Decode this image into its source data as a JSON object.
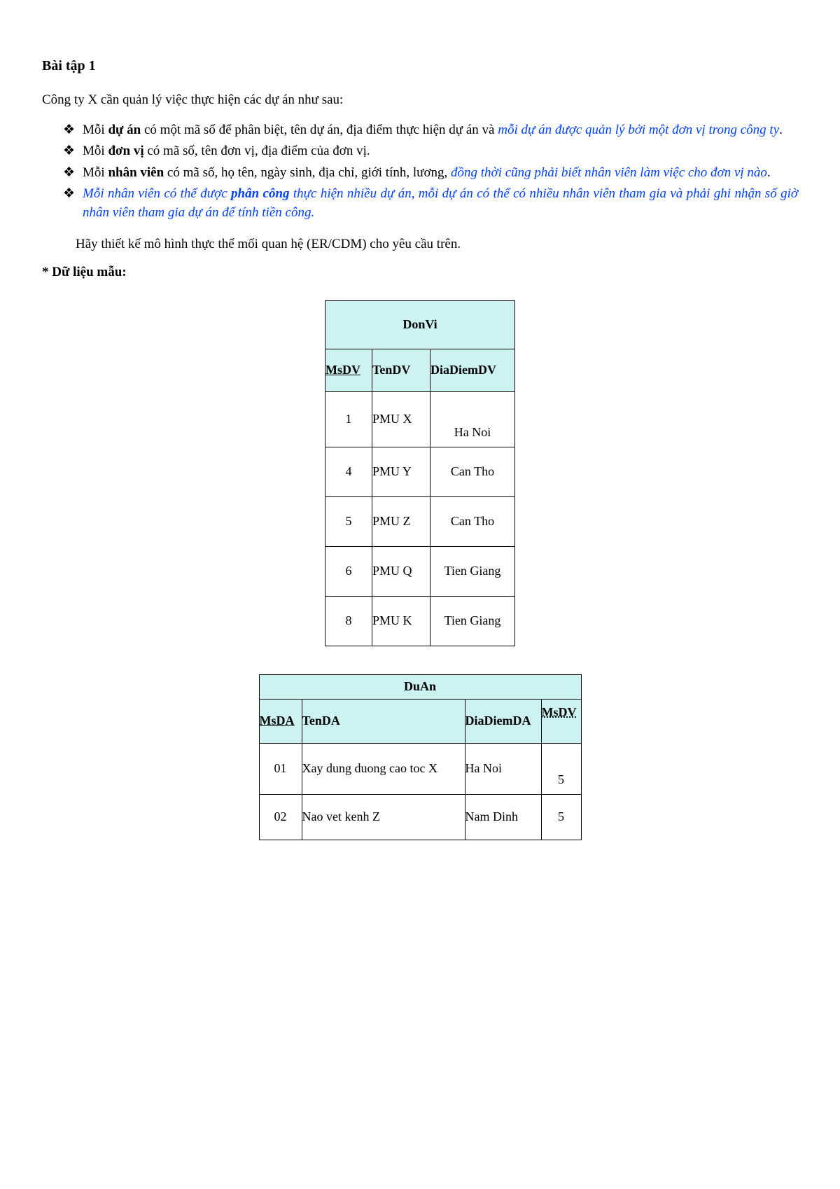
{
  "title": "Bài tập 1",
  "intro": "Công ty X cần quản lý việc thực hiện các dự án như sau:",
  "bullets": {
    "b1_pre": "Mỗi ",
    "b1_bold": "dự án",
    "b1_mid": " có một mã số để phân biệt, tên dự án, địa điểm thực hiện dự án và ",
    "b1_em": "mỗi dự án được quản lý bởi một đơn vị trong công ty",
    "b1_dot": ".",
    "b2_pre": "Mỗi ",
    "b2_bold": "đơn vị",
    "b2_tail": " có mã số, tên đơn vị, địa điểm của đơn vị.",
    "b3_pre": "Mỗi ",
    "b3_bold": "nhân viên",
    "b3_mid": " có mã số, họ tên, ngày sinh, địa chỉ, giới tính, lương, ",
    "b3_em": "đồng thời cũng phải biết nhân viên làm việc cho đơn vị nào",
    "b3_dot": ".",
    "b4_a": "Mỗi nhân viên có thể được ",
    "b4_b": "phân công",
    "b4_c": " thực hiện nhiều dự án, mỗi dự án có thể có nhiều nhân viên tham gia và phải ghi nhận số giờ nhân viên tham gia dự án để tính tiền công."
  },
  "task": "Hãy thiết kế mô hình thực thể mối quan hệ (ER/CDM) cho yêu cầu trên.",
  "sampleLabel": "* Dữ liệu mẫu:",
  "donvi": {
    "caption": "DonVi",
    "headers": [
      "MsDV",
      "TenDV",
      "DiaDiemDV"
    ],
    "pk_index": 0,
    "col_align": [
      "center",
      "left",
      "center"
    ],
    "rows": [
      [
        "1",
        "PMU X",
        "Ha Noi"
      ],
      [
        "4",
        "PMU Y",
        "Can Tho"
      ],
      [
        "5",
        "PMU Z",
        "Can Tho"
      ],
      [
        "6",
        "PMU Q",
        "Tien Giang"
      ],
      [
        "8",
        "PMU K",
        "Tien Giang"
      ]
    ],
    "first_row_last_cell_valign_bottom": true
  },
  "duan": {
    "caption": "DuAn",
    "headers": [
      "MsDA",
      "TenDA",
      "DiaDiemDA",
      "MsDV"
    ],
    "pk_index": 0,
    "fk_index": 3,
    "col_align": [
      "center",
      "left",
      "left",
      "center"
    ],
    "rows": [
      [
        "01",
        "Xay dung duong cao toc  X",
        "Ha Noi",
        "5"
      ],
      [
        "02",
        "Nao vet kenh Z",
        "Nam Dinh",
        "5"
      ]
    ],
    "first_row_last_cell_valign_bottom": true
  },
  "colors": {
    "header_bg": "#ccf2f2",
    "blue_text": "#0040ff",
    "border": "#000000",
    "page_bg": "#ffffff"
  }
}
